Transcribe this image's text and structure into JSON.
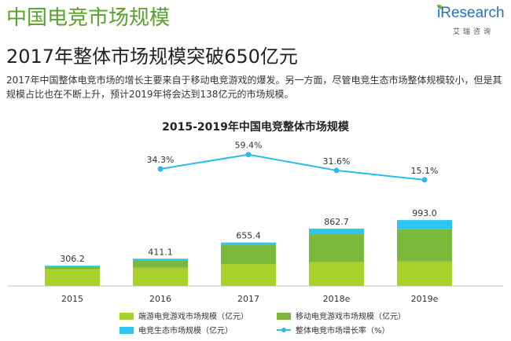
{
  "page": {
    "title": "中国电竞市场规模",
    "subtitle": "2017年整体市场规模突破650亿元",
    "body": "2017年中国整体电竞市场的增长主要来自于移动电竞游戏的爆发。另一方面，尽管电竞生态市场整体规模较小，但是其规模占比也在不断上升，预计2019年将会达到138亿元的市场规模。"
  },
  "brand": {
    "name": "iResearch",
    "sub": "艾瑞咨询"
  },
  "colors": {
    "title_green": "#5aa02c",
    "pc_series": "#a8d22a",
    "mobile_series": "#7cb83a",
    "ecosystem_series": "#2ec5ef",
    "growth_line": "#2bbbea"
  },
  "chart_data": {
    "type": "bar",
    "stacked": true,
    "title": "2015-2019年中国电竞整体市场规模",
    "categories": [
      "2015",
      "2016",
      "2017",
      "2018e",
      "2019e"
    ],
    "totals": [
      "306.2",
      "411.1",
      "655.4",
      "862.7",
      "993.0"
    ],
    "series": [
      {
        "name": "端游电竞游戏市场规模（亿元）",
        "values": [
          255,
          275,
          330,
          360,
          370
        ]
      },
      {
        "name": "移动电竞游戏市场规模（亿元）",
        "values": [
          40,
          110,
          290,
          420,
          485
        ]
      },
      {
        "name": "电竞生态市场规模（亿元）",
        "values": [
          11.2,
          26.1,
          35.4,
          82.7,
          138
        ]
      }
    ],
    "line": {
      "name": "整体电竞市场增长率（%）",
      "values": [
        34.3,
        59.4,
        31.6,
        15.1
      ],
      "labels": [
        "34.3%",
        "59.4%",
        "31.6%",
        "15.1%"
      ],
      "categories": [
        "2016",
        "2017",
        "2018e",
        "2019e"
      ]
    },
    "legend_position": "bottom",
    "grid": false
  }
}
